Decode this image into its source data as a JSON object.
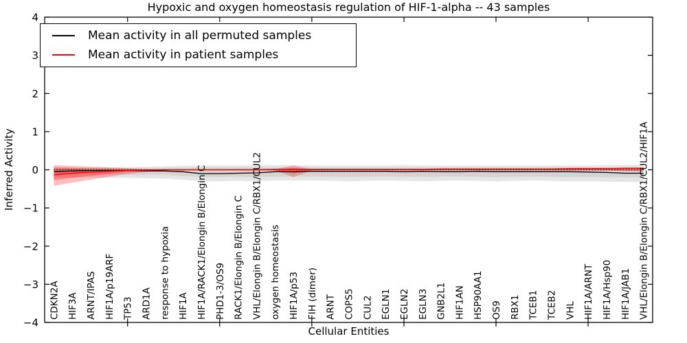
{
  "chart_data": {
    "type": "line",
    "title": "Hypoxic and oxygen homeostasis regulation of HIF-1-alpha -- 43 samples",
    "xlabel": "Cellular Entities",
    "ylabel": "Inferred Activity",
    "ylim": [
      -4,
      4
    ],
    "y_ticks": [
      4,
      3,
      2,
      1,
      0,
      -1,
      -2,
      -3,
      -4
    ],
    "x_major_tick_indices": [
      4,
      9,
      14,
      19,
      24,
      29
    ],
    "grid": false,
    "legend_position": "upper left",
    "zero_line": 0,
    "sample_count": 43,
    "categories": [
      "CDKN2A",
      "HIF3A",
      "ARNT/IPAS",
      "HIF1A/p19ARF",
      "TP53",
      "ARD1A",
      "response to hypoxia",
      "HIF1A",
      "HIF1A/RACK1/Elongin B/Elongin C",
      "PHD1-3/OS9",
      "RACK1/Elongin B/Elongin C",
      "VHL/Elongin B/Elongin C/RBX1/CUL2",
      "oxygen homeostasis",
      "HIF1A/p53",
      "FIH (dimer)",
      "ARNT",
      "COPS5",
      "CUL2",
      "EGLN1",
      "EGLN2",
      "EGLN3",
      "GNB2L1",
      "HIF1AN",
      "HSP90AA1",
      "OS9",
      "RBX1",
      "TCEB1",
      "TCEB2",
      "VHL",
      "HIF1A/ARNT",
      "HIF1A/Hsp90",
      "HIF1A/JAB1",
      "VHL/Elongin B/Elongin C/RBX1/CUL2/HIF1A"
    ],
    "series": [
      {
        "name": "Mean activity in all permuted samples",
        "color": "#000000",
        "width": 1.3,
        "values": [
          -0.05,
          -0.03,
          -0.02,
          -0.02,
          -0.02,
          -0.03,
          -0.03,
          -0.05,
          -0.1,
          -0.1,
          -0.09,
          -0.08,
          -0.05,
          -0.05,
          -0.04,
          -0.04,
          -0.04,
          -0.04,
          -0.04,
          -0.05,
          -0.04,
          -0.05,
          -0.05,
          -0.04,
          -0.05,
          -0.05,
          -0.05,
          -0.05,
          -0.05,
          -0.06,
          -0.07,
          -0.09,
          -0.09
        ]
      },
      {
        "name": "Mean activity in patient samples",
        "color": "#ff0000",
        "width": 1.5,
        "values": [
          -0.13,
          -0.09,
          -0.06,
          -0.04,
          -0.02,
          -0.01,
          0.0,
          0.0,
          0.0,
          0.0,
          0.0,
          0.0,
          0.01,
          0.01,
          0.01,
          0.01,
          0.01,
          0.01,
          0.01,
          0.01,
          0.01,
          0.02,
          0.02,
          0.02,
          0.02,
          0.02,
          0.02,
          0.02,
          0.03,
          0.03,
          0.03,
          0.04,
          0.04
        ]
      }
    ],
    "bands": [
      {
        "name": "permuted-band-outer",
        "color": "#000000",
        "opacity": 0.1,
        "upper": [
          0.06,
          0.06,
          0.06,
          0.07,
          0.07,
          0.08,
          0.09,
          0.1,
          0.11,
          0.11,
          0.11,
          0.12,
          0.12,
          0.12,
          0.11,
          0.11,
          0.11,
          0.11,
          0.11,
          0.12,
          0.11,
          0.11,
          0.11,
          0.11,
          0.11,
          0.11,
          0.11,
          0.11,
          0.11,
          0.11,
          0.12,
          0.12,
          0.12
        ],
        "lower": [
          -0.2,
          -0.2,
          -0.2,
          -0.21,
          -0.21,
          -0.22,
          -0.23,
          -0.26,
          -0.3,
          -0.3,
          -0.29,
          -0.3,
          -0.28,
          -0.28,
          -0.28,
          -0.29,
          -0.3,
          -0.29,
          -0.28,
          -0.29,
          -0.3,
          -0.29,
          -0.28,
          -0.29,
          -0.3,
          -0.29,
          -0.28,
          -0.29,
          -0.3,
          -0.3,
          -0.31,
          -0.32,
          -0.32
        ]
      },
      {
        "name": "permuted-band-inner",
        "color": "#000000",
        "opacity": 0.07,
        "upper": [
          0.03,
          0.03,
          0.03,
          0.04,
          0.04,
          0.04,
          0.05,
          0.05,
          0.06,
          0.06,
          0.06,
          0.06,
          0.06,
          0.06,
          0.06,
          0.06,
          0.06,
          0.06,
          0.06,
          0.06,
          0.06,
          0.06,
          0.06,
          0.06,
          0.06,
          0.06,
          0.06,
          0.06,
          0.06,
          0.06,
          0.06,
          0.06,
          0.06
        ],
        "lower": [
          -0.12,
          -0.12,
          -0.12,
          -0.13,
          -0.13,
          -0.13,
          -0.14,
          -0.16,
          -0.19,
          -0.19,
          -0.18,
          -0.19,
          -0.18,
          -0.18,
          -0.18,
          -0.18,
          -0.19,
          -0.18,
          -0.18,
          -0.18,
          -0.19,
          -0.18,
          -0.18,
          -0.18,
          -0.19,
          -0.18,
          -0.18,
          -0.18,
          -0.19,
          -0.19,
          -0.19,
          -0.2,
          -0.2
        ]
      },
      {
        "name": "patient-band-outer",
        "color": "#ff0000",
        "opacity": 0.25,
        "upper": [
          0.12,
          0.1,
          0.08,
          0.06,
          0.04,
          0.02,
          0.01,
          0.01,
          0.01,
          0.01,
          0.01,
          0.02,
          0.02,
          0.11,
          0.02,
          0.02,
          0.02,
          0.02,
          0.02,
          0.02,
          0.02,
          0.02,
          0.02,
          0.02,
          0.02,
          0.02,
          0.02,
          0.03,
          0.03,
          0.03,
          0.04,
          0.05,
          0.06
        ],
        "lower": [
          -0.42,
          -0.34,
          -0.26,
          -0.18,
          -0.11,
          -0.05,
          -0.02,
          -0.01,
          -0.01,
          -0.01,
          -0.01,
          -0.02,
          -0.02,
          -0.19,
          -0.02,
          -0.01,
          -0.01,
          -0.01,
          -0.01,
          -0.01,
          -0.01,
          -0.01,
          -0.01,
          -0.01,
          -0.01,
          -0.01,
          -0.01,
          -0.01,
          -0.02,
          -0.02,
          -0.02,
          -0.03,
          -0.04
        ]
      },
      {
        "name": "patient-band-inner",
        "color": "#ff0000",
        "opacity": 0.3,
        "upper": [
          0.06,
          0.05,
          0.04,
          0.03,
          0.02,
          0.01,
          0.01,
          0.01,
          0.01,
          0.01,
          0.01,
          0.01,
          0.01,
          0.05,
          0.01,
          0.01,
          0.01,
          0.01,
          0.01,
          0.01,
          0.01,
          0.01,
          0.01,
          0.01,
          0.01,
          0.01,
          0.01,
          0.01,
          0.02,
          0.02,
          0.02,
          0.03,
          0.03
        ],
        "lower": [
          -0.27,
          -0.21,
          -0.16,
          -0.11,
          -0.06,
          -0.03,
          -0.01,
          -0.01,
          -0.01,
          -0.01,
          -0.01,
          -0.01,
          -0.01,
          -0.1,
          -0.01,
          -0.01,
          -0.01,
          -0.01,
          -0.01,
          -0.01,
          -0.01,
          -0.01,
          -0.01,
          -0.01,
          -0.01,
          -0.01,
          -0.01,
          -0.01,
          -0.01,
          -0.01,
          -0.01,
          -0.02,
          -0.02
        ]
      }
    ]
  },
  "legend": {
    "items": [
      {
        "label": "Mean activity in all permuted samples",
        "color": "#000000"
      },
      {
        "label": "Mean activity in patient samples",
        "color": "#ff0000"
      }
    ]
  }
}
